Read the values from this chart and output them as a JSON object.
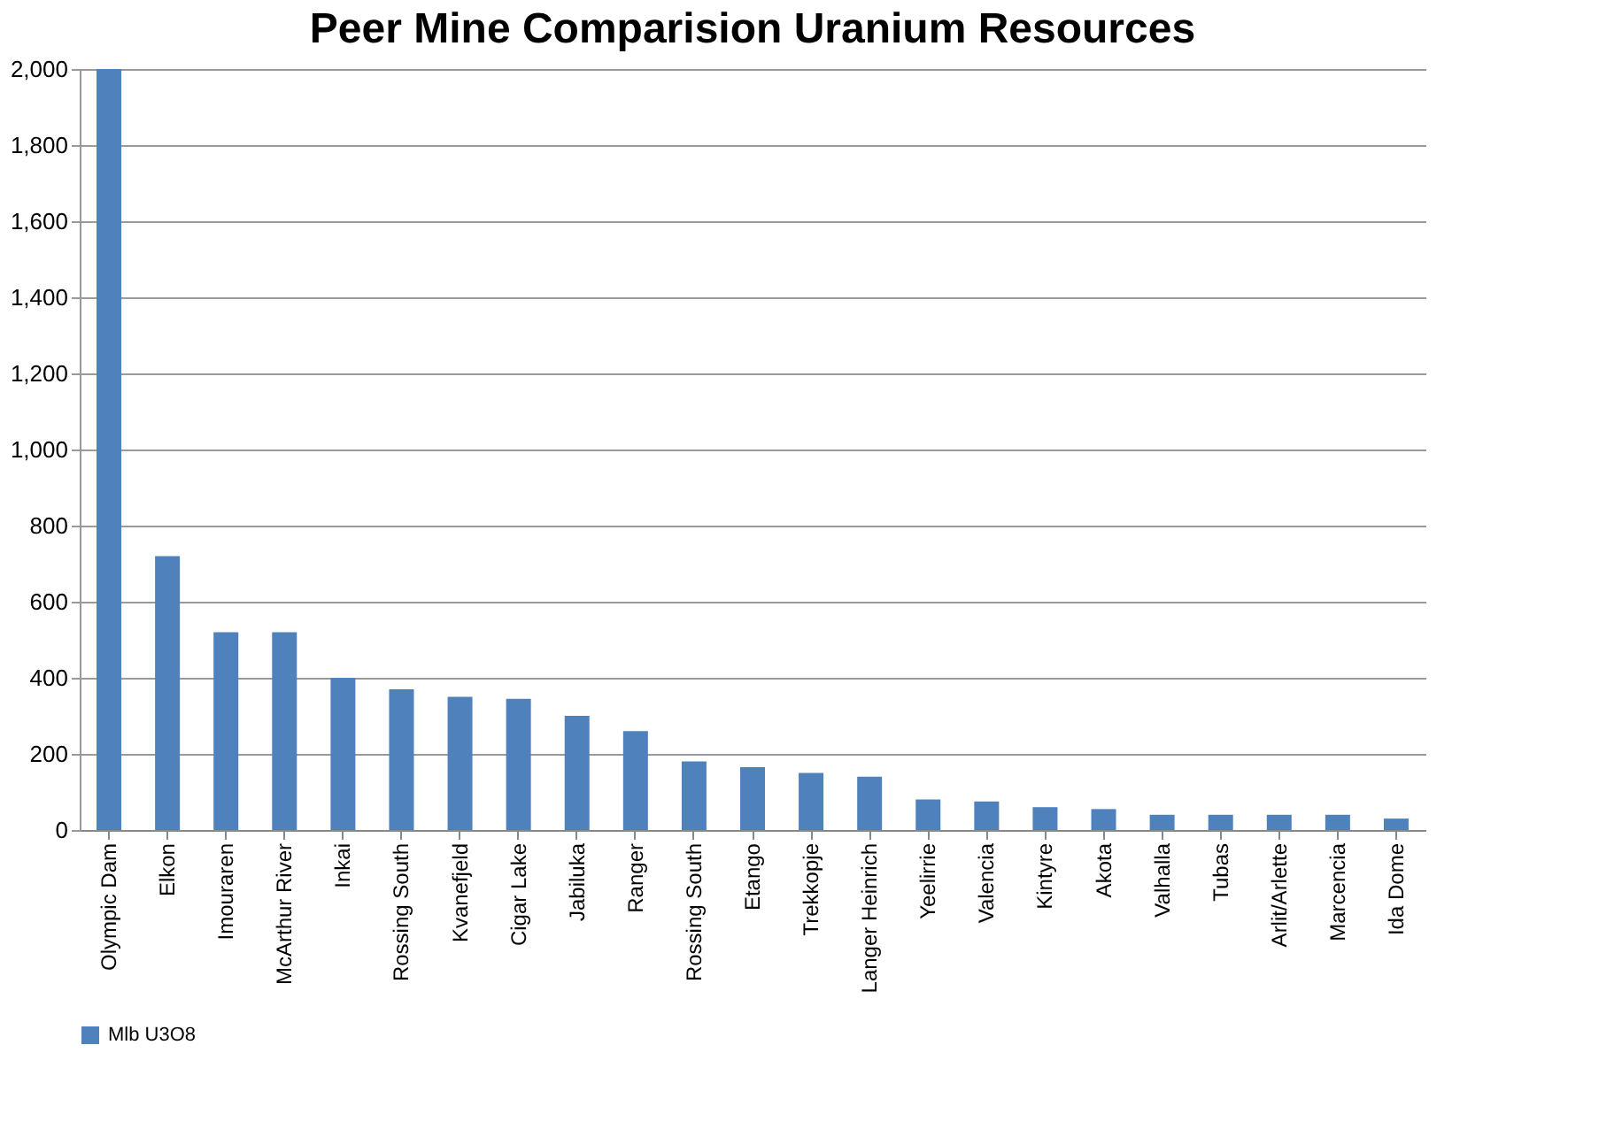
{
  "chart_data": {
    "type": "bar",
    "title": "Peer Mine Comparision Uranium Resources",
    "categories": [
      "Olympic Dam",
      "Elkon",
      "Imouraren",
      "McArthur River",
      "Inkai",
      "Rossing South",
      "Kvanefjeld",
      "Cigar Lake",
      "Jabiluka",
      "Ranger",
      "Rossing South",
      "Etango",
      "Trekkopje",
      "Langer Heinrich",
      "Yeelirrie",
      "Valencia",
      "Kintyre",
      "Akota",
      "Valhalla",
      "Tubas",
      "Arlit/Arlette",
      "Marcencia",
      "Ida Dome"
    ],
    "series": [
      {
        "name": "Mlb U3O8",
        "color": "#4f81bd",
        "values": [
          2000,
          720,
          520,
          520,
          400,
          370,
          350,
          345,
          300,
          260,
          180,
          165,
          150,
          140,
          80,
          75,
          60,
          55,
          40,
          40,
          40,
          40,
          30
        ]
      }
    ],
    "ylim": [
      0,
      2000
    ],
    "yticks": [
      {
        "value": 0,
        "label": "0"
      },
      {
        "value": 200,
        "label": "200"
      },
      {
        "value": 400,
        "label": "400"
      },
      {
        "value": 600,
        "label": "600"
      },
      {
        "value": 800,
        "label": "800"
      },
      {
        "value": 1000,
        "label": "1,000"
      },
      {
        "value": 1200,
        "label": "1,200"
      },
      {
        "value": 1400,
        "label": "1,400"
      },
      {
        "value": 1600,
        "label": "1,600"
      },
      {
        "value": 1800,
        "label": "1,800"
      },
      {
        "value": 2000,
        "label": "2,000"
      }
    ],
    "grid": "y",
    "legend": "bottom"
  }
}
